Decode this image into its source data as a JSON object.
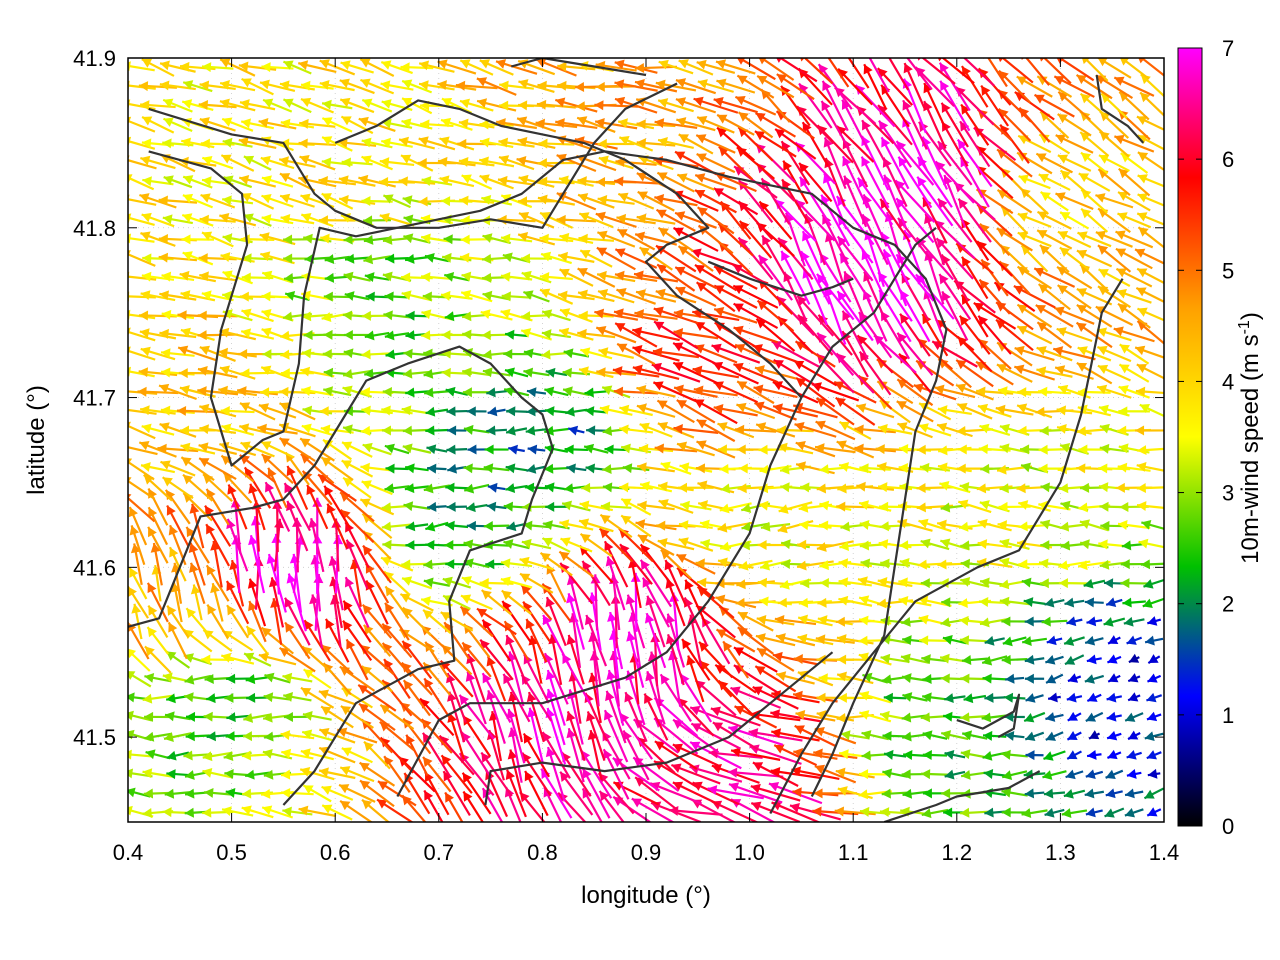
{
  "chart_data": {
    "type": "vector-field",
    "title": "",
    "xlabel": "longitude (°)",
    "ylabel": "latitude (°)",
    "xlim": [
      0.4,
      1.4
    ],
    "ylim": [
      41.45,
      41.9
    ],
    "xticks": [
      0.4,
      0.5,
      0.6,
      0.7,
      0.8,
      0.9,
      1.0,
      1.1,
      1.2,
      1.3,
      1.4
    ],
    "xtick_labels": [
      "0.4",
      "0.5",
      "0.6",
      "0.7",
      "0.8",
      "0.9",
      "1.0",
      "1.1",
      "1.2",
      "1.3",
      "1.4"
    ],
    "yticks": [
      41.5,
      41.6,
      41.7,
      41.8,
      41.9
    ],
    "ytick_labels": [
      "41.5",
      "41.6",
      "41.7",
      "41.8",
      "41.9"
    ],
    "grid": true,
    "colorbar": {
      "label_main": "10m-wind speed (m s",
      "label_sup": "-1",
      "label_close": ")",
      "range": [
        0,
        7
      ],
      "ticks": [
        0,
        1,
        2,
        3,
        4,
        5,
        6,
        7
      ],
      "tick_labels": [
        "0",
        "1",
        "2",
        "3",
        "4",
        "5",
        "6",
        "7"
      ],
      "colors": [
        "#000000",
        "#0000ff",
        "#00c000",
        "#ffff00",
        "#ffa000",
        "#ff0000",
        "#ff00ff"
      ]
    },
    "wind_regions": [
      {
        "lon": 1.11,
        "lat": 41.77,
        "speed": 7.0,
        "dir_deg": 115
      },
      {
        "lon": 1.18,
        "lat": 41.83,
        "speed": 6.8,
        "dir_deg": 120
      },
      {
        "lon": 0.56,
        "lat": 41.6,
        "speed": 7.0,
        "dir_deg": 95
      },
      {
        "lon": 0.88,
        "lat": 41.56,
        "speed": 6.8,
        "dir_deg": 100
      },
      {
        "lon": 0.82,
        "lat": 41.51,
        "speed": 6.5,
        "dir_deg": 110
      },
      {
        "lon": 0.98,
        "lat": 41.47,
        "speed": 6.5,
        "dir_deg": 165
      },
      {
        "lon": 0.95,
        "lat": 41.72,
        "speed": 5.5,
        "dir_deg": 160
      },
      {
        "lon": 0.8,
        "lat": 41.68,
        "speed": 1.8,
        "dir_deg": 180
      },
      {
        "lon": 0.65,
        "lat": 41.75,
        "speed": 2.8,
        "dir_deg": 180
      },
      {
        "lon": 1.25,
        "lat": 41.65,
        "speed": 3.5,
        "dir_deg": 175
      },
      {
        "lon": 1.35,
        "lat": 41.52,
        "speed": 1.2,
        "dir_deg": 200
      },
      {
        "lon": 0.45,
        "lat": 41.7,
        "speed": 4.2,
        "dir_deg": 170
      },
      {
        "lon": 0.6,
        "lat": 41.85,
        "speed": 3.8,
        "dir_deg": 165
      },
      {
        "lon": 0.85,
        "lat": 41.88,
        "speed": 4.5,
        "dir_deg": 170
      },
      {
        "lon": 0.48,
        "lat": 41.52,
        "speed": 2.5,
        "dir_deg": 185
      },
      {
        "lon": 0.72,
        "lat": 41.63,
        "speed": 2.0,
        "dir_deg": 185
      },
      {
        "lon": 1.02,
        "lat": 41.62,
        "speed": 3.5,
        "dir_deg": 185
      },
      {
        "lon": 1.3,
        "lat": 41.82,
        "speed": 4.0,
        "dir_deg": 150
      },
      {
        "lon": 0.42,
        "lat": 41.58,
        "speed": 4.5,
        "dir_deg": 110
      },
      {
        "lon": 1.2,
        "lat": 41.5,
        "speed": 2.5,
        "dir_deg": 180
      }
    ],
    "contours": [
      [
        [
          0.42,
          41.87
        ],
        [
          0.5,
          41.855
        ],
        [
          0.55,
          41.85
        ],
        [
          0.58,
          41.82
        ],
        [
          0.6,
          41.81
        ],
        [
          0.64,
          41.8
        ],
        [
          0.7,
          41.8
        ],
        [
          0.75,
          41.805
        ],
        [
          0.8,
          41.8
        ],
        [
          0.82,
          41.82
        ],
        [
          0.85,
          41.85
        ],
        [
          0.88,
          41.87
        ],
        [
          0.93,
          41.885
        ]
      ],
      [
        [
          0.42,
          41.845
        ],
        [
          0.48,
          41.835
        ],
        [
          0.51,
          41.82
        ],
        [
          0.515,
          41.79
        ],
        [
          0.5,
          41.76
        ],
        [
          0.49,
          41.74
        ],
        [
          0.48,
          41.7
        ],
        [
          0.5,
          41.66
        ],
        [
          0.53,
          41.675
        ],
        [
          0.55,
          41.68
        ],
        [
          0.565,
          41.72
        ],
        [
          0.57,
          41.76
        ],
        [
          0.585,
          41.8
        ],
        [
          0.62,
          41.795
        ],
        [
          0.7,
          41.805
        ],
        [
          0.74,
          41.81
        ],
        [
          0.78,
          41.82
        ],
        [
          0.82,
          41.84
        ],
        [
          0.86,
          41.845
        ],
        [
          0.92,
          41.84
        ],
        [
          0.98,
          41.83
        ],
        [
          1.02,
          41.825
        ],
        [
          1.06,
          41.82
        ],
        [
          1.1,
          41.8
        ],
        [
          1.14,
          41.79
        ],
        [
          1.17,
          41.77
        ],
        [
          1.19,
          41.74
        ],
        [
          1.18,
          41.71
        ],
        [
          1.16,
          41.68
        ],
        [
          1.15,
          41.64
        ],
        [
          1.14,
          41.6
        ],
        [
          1.13,
          41.56
        ],
        [
          1.1,
          41.52
        ],
        [
          1.08,
          41.49
        ],
        [
          1.06,
          41.465
        ]
      ],
      [
        [
          0.4,
          41.565
        ],
        [
          0.43,
          41.57
        ],
        [
          0.45,
          41.6
        ],
        [
          0.47,
          41.63
        ],
        [
          0.52,
          41.635
        ],
        [
          0.55,
          41.64
        ],
        [
          0.58,
          41.66
        ],
        [
          0.61,
          41.69
        ],
        [
          0.63,
          41.71
        ],
        [
          0.67,
          41.72
        ],
        [
          0.72,
          41.73
        ],
        [
          0.75,
          41.72
        ],
        [
          0.78,
          41.7
        ],
        [
          0.8,
          41.69
        ],
        [
          0.81,
          41.67
        ],
        [
          0.79,
          41.64
        ],
        [
          0.78,
          41.62
        ],
        [
          0.73,
          41.61
        ],
        [
          0.71,
          41.58
        ],
        [
          0.715,
          41.545
        ],
        [
          0.68,
          41.54
        ],
        [
          0.65,
          41.53
        ],
        [
          0.62,
          41.52
        ],
        [
          0.6,
          41.5
        ],
        [
          0.58,
          41.48
        ],
        [
          0.55,
          41.46
        ]
      ],
      [
        [
          0.66,
          41.465
        ],
        [
          0.7,
          41.51
        ],
        [
          0.73,
          41.52
        ],
        [
          0.8,
          41.52
        ],
        [
          0.88,
          41.535
        ],
        [
          0.92,
          41.55
        ],
        [
          0.96,
          41.58
        ],
        [
          1.0,
          41.62
        ],
        [
          1.02,
          41.66
        ],
        [
          1.05,
          41.7
        ],
        [
          1.08,
          41.73
        ],
        [
          1.12,
          41.75
        ],
        [
          1.14,
          41.77
        ],
        [
          1.16,
          41.79
        ],
        [
          1.18,
          41.8
        ]
      ],
      [
        [
          0.745,
          41.46
        ],
        [
          0.75,
          41.48
        ],
        [
          0.8,
          41.485
        ],
        [
          0.86,
          41.48
        ],
        [
          0.92,
          41.485
        ],
        [
          0.98,
          41.5
        ],
        [
          1.02,
          41.52
        ],
        [
          1.06,
          41.54
        ],
        [
          1.08,
          41.55
        ]
      ],
      [
        [
          1.02,
          41.455
        ],
        [
          1.05,
          41.49
        ],
        [
          1.08,
          41.52
        ],
        [
          1.12,
          41.55
        ],
        [
          1.16,
          41.58
        ],
        [
          1.22,
          41.6
        ],
        [
          1.26,
          41.61
        ],
        [
          1.28,
          41.63
        ],
        [
          1.3,
          41.65
        ],
        [
          1.32,
          41.69
        ],
        [
          1.33,
          41.72
        ],
        [
          1.34,
          41.75
        ],
        [
          1.36,
          41.77
        ]
      ],
      [
        [
          1.13,
          41.45
        ],
        [
          1.18,
          41.46
        ],
        [
          1.2,
          41.465
        ],
        [
          1.25,
          41.47
        ],
        [
          1.28,
          41.48
        ]
      ],
      [
        [
          1.2,
          41.51
        ],
        [
          1.225,
          41.505
        ],
        [
          1.255,
          41.515
        ],
        [
          1.26,
          41.525
        ],
        [
          1.255,
          41.505
        ],
        [
          1.24,
          41.5
        ]
      ],
      [
        [
          1.335,
          41.89
        ],
        [
          1.34,
          41.87
        ],
        [
          1.365,
          41.86
        ],
        [
          1.38,
          41.85
        ]
      ],
      [
        [
          0.6,
          41.85
        ],
        [
          0.64,
          41.86
        ],
        [
          0.68,
          41.875
        ],
        [
          0.72,
          41.87
        ],
        [
          0.76,
          41.86
        ],
        [
          0.8,
          41.855
        ],
        [
          0.84,
          41.85
        ],
        [
          0.88,
          41.84
        ],
        [
          0.93,
          41.82
        ],
        [
          0.96,
          41.8
        ],
        [
          0.92,
          41.79
        ],
        [
          0.9,
          41.78
        ],
        [
          0.93,
          41.76
        ],
        [
          0.98,
          41.74
        ],
        [
          1.02,
          41.72
        ],
        [
          1.05,
          41.7
        ]
      ],
      [
        [
          0.77,
          41.895
        ],
        [
          0.8,
          41.9
        ],
        [
          0.85,
          41.895
        ],
        [
          0.9,
          41.89
        ]
      ],
      [
        [
          0.96,
          41.78
        ],
        [
          1.0,
          41.77
        ],
        [
          1.05,
          41.76
        ],
        [
          1.08,
          41.765
        ],
        [
          1.1,
          41.77
        ]
      ]
    ]
  }
}
